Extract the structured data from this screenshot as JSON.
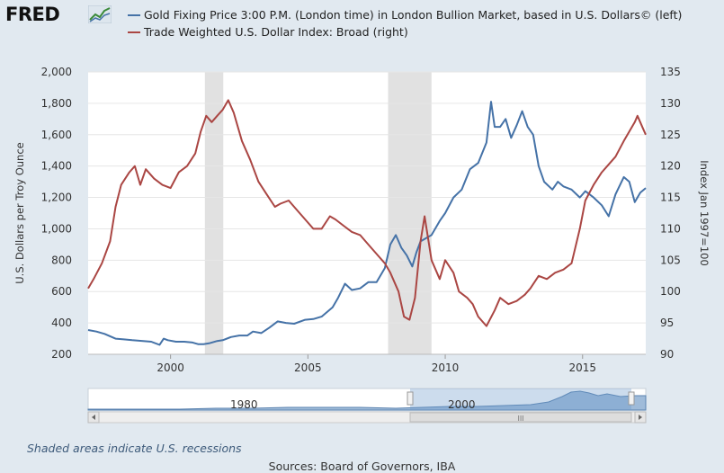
{
  "brand": {
    "logo_text": "FRED",
    "logo_icon": "fred-chart-icon"
  },
  "legend": [
    {
      "label": "Gold Fixing Price 3:00 P.M. (London time) in London Bullion Market, based in U.S. Dollars© (left)",
      "color": "#4572a7"
    },
    {
      "label": "Trade Weighted U.S. Dollar Index: Broad (right)",
      "color": "#aa4643"
    }
  ],
  "chart_data": {
    "type": "line",
    "xlabel": "",
    "ylabel": "U.S. Dollars per Troy Ounce",
    "y2label": "Index Jan 1997=100",
    "xlim": [
      1997.0,
      2017.3
    ],
    "ylim": [
      200,
      2000
    ],
    "y2lim": [
      90,
      135
    ],
    "xticks": [
      2000,
      2005,
      2010,
      2015
    ],
    "yticks": [
      200,
      400,
      600,
      800,
      1000,
      1200,
      1400,
      1600,
      1800,
      2000
    ],
    "yticklabels": [
      "200",
      "400",
      "600",
      "800",
      "1,000",
      "1,200",
      "1,400",
      "1,600",
      "1,800",
      "2,000"
    ],
    "y2ticks": [
      90,
      95,
      100,
      105,
      110,
      115,
      120,
      125,
      130,
      135
    ],
    "grid": true,
    "recessions": [
      [
        2001.25,
        2001.92
      ],
      [
        2007.92,
        2009.5
      ]
    ],
    "series": [
      {
        "name": "Gold Fixing Price 3:00 P.M. (London time) in London Bullion Market, based in U.S. Dollars© (left)",
        "axis": "left",
        "color": "#4572a7",
        "x": [
          1997.0,
          1997.3,
          1997.6,
          1998.0,
          1998.3,
          1998.6,
          1999.0,
          1999.3,
          1999.6,
          1999.75,
          1999.9,
          2000.2,
          2000.5,
          2000.8,
          2001.0,
          2001.2,
          2001.4,
          2001.7,
          2001.9,
          2002.2,
          2002.5,
          2002.8,
          2003.0,
          2003.3,
          2003.6,
          2003.9,
          2004.2,
          2004.5,
          2004.9,
          2005.2,
          2005.5,
          2005.9,
          2006.1,
          2006.35,
          2006.6,
          2006.9,
          2007.2,
          2007.5,
          2007.8,
          2008.0,
          2008.2,
          2008.4,
          2008.6,
          2008.8,
          2008.95,
          2009.1,
          2009.3,
          2009.5,
          2009.8,
          2010.0,
          2010.3,
          2010.6,
          2010.9,
          2011.2,
          2011.5,
          2011.67,
          2011.8,
          2012.0,
          2012.2,
          2012.4,
          2012.6,
          2012.8,
          2013.0,
          2013.2,
          2013.4,
          2013.6,
          2013.9,
          2014.1,
          2014.3,
          2014.6,
          2014.9,
          2015.1,
          2015.4,
          2015.7,
          2015.95,
          2016.2,
          2016.5,
          2016.7,
          2016.9,
          2017.1,
          2017.3
        ],
        "values": [
          355,
          345,
          330,
          300,
          295,
          290,
          285,
          280,
          260,
          300,
          290,
          280,
          280,
          275,
          265,
          265,
          270,
          285,
          290,
          310,
          320,
          320,
          345,
          335,
          370,
          410,
          400,
          395,
          420,
          425,
          440,
          500,
          560,
          650,
          610,
          620,
          660,
          660,
          750,
          900,
          960,
          880,
          830,
          760,
          850,
          920,
          940,
          960,
          1050,
          1100,
          1200,
          1250,
          1380,
          1420,
          1550,
          1810,
          1650,
          1650,
          1700,
          1580,
          1660,
          1750,
          1650,
          1600,
          1400,
          1300,
          1250,
          1300,
          1270,
          1250,
          1200,
          1240,
          1200,
          1150,
          1080,
          1220,
          1330,
          1300,
          1170,
          1230,
          1260
        ]
      },
      {
        "name": "Trade Weighted U.S. Dollar Index: Broad (right)",
        "axis": "right",
        "color": "#aa4643",
        "x": [
          1997.0,
          1997.2,
          1997.5,
          1997.8,
          1998.0,
          1998.2,
          1998.5,
          1998.7,
          1998.9,
          1999.1,
          1999.4,
          1999.7,
          2000.0,
          2000.3,
          2000.6,
          2000.9,
          2001.1,
          2001.3,
          2001.5,
          2001.7,
          2001.9,
          2002.1,
          2002.3,
          2002.6,
          2002.9,
          2003.2,
          2003.5,
          2003.8,
          2004.0,
          2004.3,
          2004.6,
          2004.9,
          2005.2,
          2005.5,
          2005.8,
          2006.0,
          2006.3,
          2006.6,
          2006.9,
          2007.2,
          2007.5,
          2007.8,
          2008.0,
          2008.3,
          2008.5,
          2008.7,
          2008.9,
          2009.1,
          2009.25,
          2009.5,
          2009.8,
          2010.0,
          2010.3,
          2010.5,
          2010.8,
          2011.0,
          2011.2,
          2011.5,
          2011.8,
          2012.0,
          2012.3,
          2012.6,
          2012.9,
          2013.1,
          2013.4,
          2013.7,
          2014.0,
          2014.3,
          2014.6,
          2014.9,
          2015.1,
          2015.4,
          2015.7,
          2015.9,
          2016.2,
          2016.5,
          2016.7,
          2016.9,
          2017.0,
          2017.2,
          2017.3
        ],
        "values": [
          100.5,
          102.0,
          104.5,
          108.0,
          113.5,
          117.0,
          119.0,
          120.0,
          117.0,
          119.5,
          118.0,
          117.0,
          116.5,
          119.0,
          120.0,
          122.0,
          125.5,
          128.0,
          127.0,
          128.0,
          129.0,
          130.5,
          128.5,
          124.0,
          121.0,
          117.5,
          115.5,
          113.5,
          114.0,
          114.5,
          113.0,
          111.5,
          110.0,
          110.0,
          112.0,
          111.5,
          110.5,
          109.5,
          109.0,
          107.5,
          106.0,
          104.5,
          103.0,
          100.0,
          96.0,
          95.5,
          99.0,
          108.0,
          112.0,
          105.0,
          102.0,
          105.0,
          103.0,
          100.0,
          99.0,
          98.0,
          96.0,
          94.5,
          97.0,
          99.0,
          98.0,
          98.5,
          99.5,
          100.5,
          102.5,
          102.0,
          103.0,
          103.5,
          104.5,
          110.0,
          114.5,
          117.0,
          119.0,
          120.0,
          121.5,
          124.0,
          125.5,
          127.0,
          128.0,
          126.0,
          125.0
        ]
      }
    ]
  },
  "navigator": {
    "label_1980": "1980",
    "label_2000": "2000",
    "scroll_grip": "III"
  },
  "footer": {
    "recession_note": "Shaded areas indicate U.S. recessions",
    "sources": "Sources: Board of Governors, IBA"
  }
}
